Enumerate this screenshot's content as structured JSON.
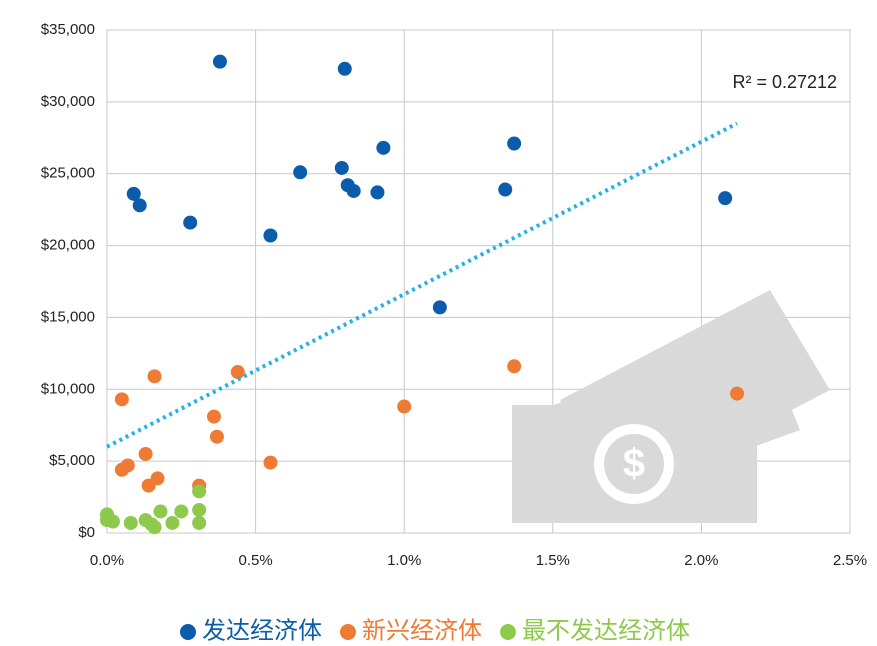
{
  "chart_data": {
    "type": "scatter",
    "xlim": [
      0,
      2.5
    ],
    "xticks": [
      {
        "value": 0,
        "label": "0.0%"
      },
      {
        "value": 0.5,
        "label": "0.5%"
      },
      {
        "value": 1,
        "label": "1.0%"
      },
      {
        "value": 1.5,
        "label": "1.5%"
      },
      {
        "value": 2,
        "label": "2.0%"
      },
      {
        "value": 2.5,
        "label": "2.5%"
      }
    ],
    "ylim": [
      0,
      35000
    ],
    "yticks": [
      {
        "value": 0,
        "label": "$0"
      },
      {
        "value": 5000,
        "label": "$5,000"
      },
      {
        "value": 10000,
        "label": "$10,000"
      },
      {
        "value": 15000,
        "label": "$15,000"
      },
      {
        "value": 20000,
        "label": "$20,000"
      },
      {
        "value": 25000,
        "label": "$25,000"
      },
      {
        "value": 30000,
        "label": "$30,000"
      },
      {
        "value": 35000,
        "label": "$35,000"
      }
    ],
    "grid": true,
    "legend": "bottom",
    "series": [
      {
        "name": "发达经济体",
        "color": "#0b5cad",
        "x": [
          0.38,
          0.8,
          0.09,
          0.11,
          0.28,
          0.55,
          0.65,
          0.79,
          0.81,
          0.83,
          0.91,
          0.93,
          1.12,
          1.34,
          1.37,
          2.08
        ],
        "values": [
          32800,
          32300,
          23600,
          22800,
          21600,
          20700,
          25100,
          25400,
          24200,
          23800,
          23700,
          26800,
          15700,
          23900,
          27100,
          23300
        ]
      },
      {
        "name": "新兴经济体",
        "color": "#ee7a33",
        "x": [
          0.05,
          0.16,
          0.44,
          0.36,
          0.37,
          0.05,
          0.07,
          0.13,
          0.17,
          0.14,
          0.31,
          0.55,
          1.0,
          1.37,
          2.12
        ],
        "values": [
          9300,
          10900,
          11200,
          8100,
          6700,
          4400,
          4700,
          5500,
          3800,
          3300,
          3300,
          4900,
          8800,
          11600,
          9700
        ]
      },
      {
        "name": "最不发达经济体",
        "color": "#8dc94a",
        "x": [
          0.0,
          0.02,
          0.0,
          0.08,
          0.13,
          0.15,
          0.16,
          0.18,
          0.22,
          0.25,
          0.31,
          0.31,
          0.31
        ],
        "values": [
          1300,
          800,
          900,
          700,
          900,
          600,
          400,
          1500,
          700,
          1500,
          2900,
          1600,
          700
        ]
      }
    ],
    "trendline": {
      "x": [
        0,
        2.12
      ],
      "y": [
        6000,
        28500
      ],
      "label": "R² = 0.27212",
      "color": "#22b1e8"
    }
  }
}
